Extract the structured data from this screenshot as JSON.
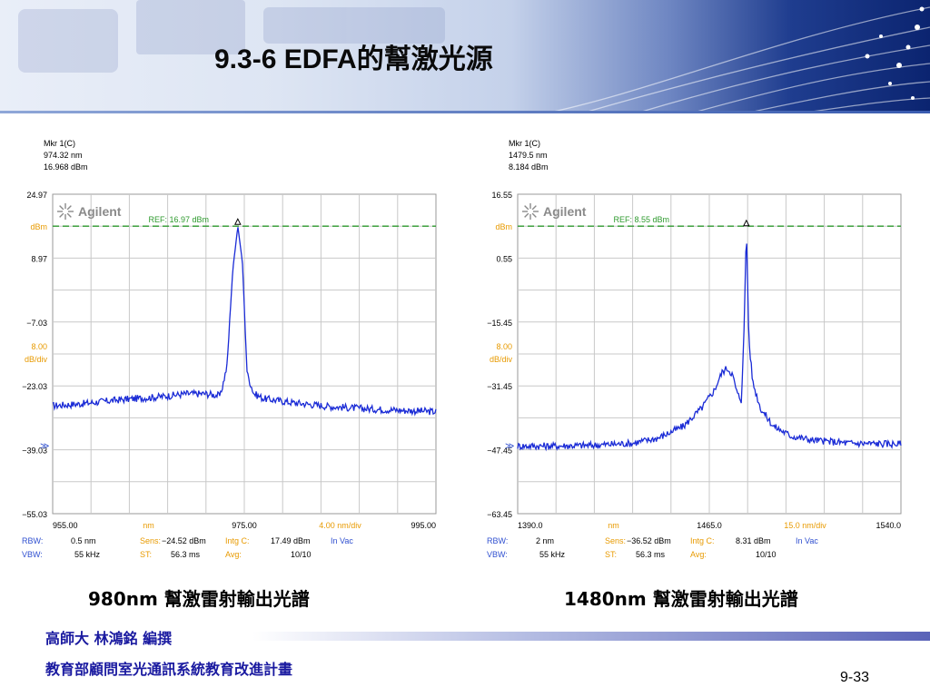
{
  "slide": {
    "title": "9.3-6 EDFA的幫激光源",
    "footer_author": "高師大     林鴻銘 編撰",
    "footer_org": "教育部顧問室光通訊系統教育改進計畫",
    "page_number": "9-33"
  },
  "colors": {
    "trace": "#1a2bd6",
    "ref_line": "#2e9a2e",
    "grid": "#c8c8c8",
    "orange": "#e89a00",
    "blue_text": "#3050d0"
  },
  "chart_data": [
    {
      "type": "line",
      "title": "980nm 幫激雷射輸出光譜",
      "brand": "Agilent",
      "marker": {
        "label": "Mkr 1(C)",
        "wavelength": "974.32 nm",
        "power": "16.968 dBm"
      },
      "ref_label": "REF: 16.97 dBm",
      "ref_value": 16.97,
      "ylim": [
        -55.03,
        24.97
      ],
      "xlim": [
        955,
        995
      ],
      "y_ticks": [
        "24.97",
        "8.97",
        "−7.03",
        "−23.03",
        "−39.03",
        "−55.03"
      ],
      "y_unit": "dBm",
      "scale_value": "8.00",
      "scale_unit": "dB/div",
      "x_ticks": [
        "955.00",
        "975.00",
        "995.00"
      ],
      "x_unit": "nm",
      "x_span": "4.00 nm/div",
      "bottom": {
        "rbw_label": "RBW:",
        "rbw": "0.5 nm",
        "sens_label": "Sens:",
        "sens": "−24.52 dBm",
        "intg_label": "Intg C:",
        "intg": "17.49 dBm",
        "mode": "In Vac",
        "vbw_label": "VBW:",
        "vbw": "55 kHz",
        "st_label": "ST:",
        "st": "56.3 ms",
        "avg_label": "Avg:",
        "avg": "10/10"
      },
      "series": [
        {
          "x": [
            955,
            958,
            962,
            966,
            969,
            971,
            972.5,
            973.2,
            973.8,
            974.32,
            974.8,
            975.3,
            976,
            977,
            980,
            984,
            988,
            992,
            995
          ],
          "y": [
            -28,
            -27.5,
            -26.5,
            -25.8,
            -25,
            -25,
            -25.5,
            -18,
            6,
            16.97,
            8,
            -20,
            -25,
            -26.2,
            -27.2,
            -28.2,
            -28.8,
            -29.2,
            -29.5
          ]
        }
      ]
    },
    {
      "type": "line",
      "title": "1480nm 幫激雷射輸出光譜",
      "brand": "Agilent",
      "marker": {
        "label": "Mkr 1(C)",
        "wavelength": "1479.5 nm",
        "power": "8.184 dBm"
      },
      "ref_label": "REF: 8.55 dBm",
      "ref_value": 8.55,
      "ylim": [
        -63.45,
        16.55
      ],
      "xlim": [
        1390,
        1540
      ],
      "y_ticks": [
        "16.55",
        "0.55",
        "−15.45",
        "−31.45",
        "−47.45",
        "−63.45"
      ],
      "y_unit": "dBm",
      "scale_value": "8.00",
      "scale_unit": "dB/div",
      "x_ticks": [
        "1390.0",
        "1465.0",
        "1540.0"
      ],
      "x_unit": "nm",
      "x_span": "15.0 nm/div",
      "bottom": {
        "rbw_label": "RBW:",
        "rbw": "2 nm",
        "sens_label": "Sens:",
        "sens": "−36.52 dBm",
        "intg_label": "Intg C:",
        "intg": "8.31 dBm",
        "mode": "In Vac",
        "vbw_label": "VBW:",
        "vbw": "55 kHz",
        "st_label": "ST:",
        "st": "56.3 ms",
        "avg_label": "Avg:",
        "avg": "10/10"
      },
      "series": [
        {
          "x": [
            1390,
            1405,
            1420,
            1435,
            1445,
            1455,
            1462,
            1467,
            1470,
            1472,
            1474,
            1476,
            1477.5,
            1478.5,
            1479.5,
            1480.5,
            1482,
            1485,
            1490,
            1497,
            1505,
            1520,
            1540
          ],
          "y": [
            -46.5,
            -46.5,
            -46.3,
            -45.8,
            -44.5,
            -41.5,
            -37,
            -32.5,
            -28,
            -27,
            -28.5,
            -33.5,
            -35,
            -20,
            8.184,
            -20,
            -30.5,
            -37,
            -41.5,
            -44,
            -45,
            -45.8,
            -46
          ]
        }
      ]
    }
  ]
}
